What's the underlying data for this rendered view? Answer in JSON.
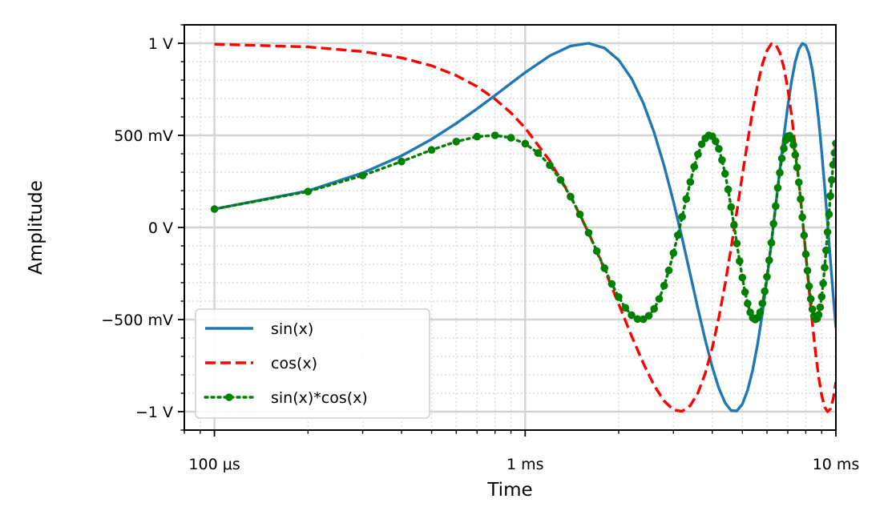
{
  "chart_data": {
    "type": "line",
    "title": "",
    "xlabel": "Time",
    "ylabel": "Amplitude",
    "x_scale": "log",
    "x_unit": "s",
    "xlim": [
      8e-05,
      0.01
    ],
    "ylim": [
      -1.1,
      1.1
    ],
    "grid": true,
    "minor_grid": true,
    "legend_position": "lower-left",
    "x_ticks": [
      {
        "value": 0.0001,
        "label": "100 μs"
      },
      {
        "value": 0.001,
        "label": "1 ms"
      },
      {
        "value": 0.01,
        "label": "10 ms"
      }
    ],
    "y_ticks": [
      {
        "value": 1,
        "label": "1 V"
      },
      {
        "value": 0.5,
        "label": "500 mV"
      },
      {
        "value": 0,
        "label": "0 V"
      },
      {
        "value": -0.5,
        "label": "−500 mV"
      },
      {
        "value": -1,
        "label": "−1 V"
      }
    ],
    "series": [
      {
        "name": "sin(x)",
        "color": "#1f77b4",
        "style": "solid",
        "x": [
          0.0001,
          0.0002,
          0.0003,
          0.0004,
          0.0005,
          0.0006,
          0.0007,
          0.0008,
          0.0009,
          0.001,
          0.0012,
          0.0014,
          0.0016,
          0.0018,
          0.002,
          0.0022,
          0.0024,
          0.0026,
          0.0028,
          0.003,
          0.0032,
          0.0034,
          0.0036,
          0.0038,
          0.004,
          0.0042,
          0.0044,
          0.0046,
          0.0048,
          0.005,
          0.0052,
          0.0054,
          0.0056,
          0.0058,
          0.006,
          0.0062,
          0.0064,
          0.0066,
          0.0068,
          0.007,
          0.0072,
          0.0074,
          0.0076,
          0.0078,
          0.008,
          0.0082,
          0.0084,
          0.0086,
          0.0088,
          0.009,
          0.0092,
          0.0094,
          0.0096,
          0.0098,
          0.01
        ],
        "values": [
          0.1,
          0.199,
          0.296,
          0.389,
          0.479,
          0.565,
          0.644,
          0.717,
          0.783,
          0.841,
          0.932,
          0.985,
          1.0,
          0.974,
          0.909,
          0.808,
          0.675,
          0.516,
          0.335,
          0.141,
          -0.058,
          -0.256,
          -0.443,
          -0.612,
          -0.757,
          -0.872,
          -0.952,
          -0.994,
          -0.996,
          -0.959,
          -0.883,
          -0.773,
          -0.631,
          -0.465,
          -0.279,
          -0.083,
          0.117,
          0.312,
          0.494,
          0.657,
          0.794,
          0.899,
          0.968,
          0.999,
          0.989,
          0.941,
          0.855,
          0.734,
          0.585,
          0.412,
          0.223,
          0.025,
          -0.174,
          -0.366,
          -0.544
        ]
      },
      {
        "name": "cos(x)",
        "color": "#ff0000",
        "style": "dashed",
        "x": [
          0.0001,
          0.0002,
          0.0003,
          0.0004,
          0.0005,
          0.0006,
          0.0007,
          0.0008,
          0.0009,
          0.001,
          0.0012,
          0.0014,
          0.0016,
          0.0018,
          0.002,
          0.0022,
          0.0024,
          0.0026,
          0.0028,
          0.003,
          0.0032,
          0.0034,
          0.0036,
          0.0038,
          0.004,
          0.0042,
          0.0044,
          0.0046,
          0.0048,
          0.005,
          0.0052,
          0.0054,
          0.0056,
          0.0058,
          0.006,
          0.0062,
          0.0064,
          0.0066,
          0.0068,
          0.007,
          0.0072,
          0.0074,
          0.0076,
          0.0078,
          0.008,
          0.0082,
          0.0084,
          0.0086,
          0.0088,
          0.009,
          0.0092,
          0.0094,
          0.0096,
          0.0098,
          0.01
        ],
        "values": [
          0.995,
          0.98,
          0.955,
          0.921,
          0.878,
          0.825,
          0.765,
          0.697,
          0.622,
          0.54,
          0.362,
          0.17,
          -0.029,
          -0.227,
          -0.416,
          -0.589,
          -0.737,
          -0.857,
          -0.942,
          -0.99,
          -0.998,
          -0.967,
          -0.897,
          -0.791,
          -0.654,
          -0.49,
          -0.307,
          -0.112,
          0.087,
          0.284,
          0.468,
          0.635,
          0.776,
          0.886,
          0.96,
          0.997,
          0.993,
          0.95,
          0.869,
          0.754,
          0.608,
          0.438,
          0.251,
          0.054,
          -0.146,
          -0.339,
          -0.519,
          -0.679,
          -0.811,
          -0.911,
          -0.975,
          -1.0,
          -0.985,
          -0.931,
          -0.839
        ]
      },
      {
        "name": "sin(x)*cos(x)",
        "color": "#008000",
        "style": "dotted-markers",
        "x": [
          0.0001,
          0.0002,
          0.0003,
          0.0004,
          0.0005,
          0.0006,
          0.0007,
          0.0008,
          0.0009,
          0.001,
          0.0011,
          0.0012,
          0.0013,
          0.0014,
          0.0015,
          0.0016,
          0.0017,
          0.0018,
          0.0019,
          0.002,
          0.0021,
          0.0022,
          0.0023,
          0.0024,
          0.0025,
          0.0026,
          0.0027,
          0.0028,
          0.0029,
          0.003,
          0.0031,
          0.0032,
          0.0033,
          0.0034,
          0.0035,
          0.0036,
          0.0037,
          0.0038,
          0.0039,
          0.004,
          0.0041,
          0.0042,
          0.0043,
          0.0044,
          0.0045,
          0.0046,
          0.0047,
          0.0048,
          0.0049,
          0.005,
          0.0051,
          0.0052,
          0.0053,
          0.0054,
          0.0055,
          0.0056,
          0.0057,
          0.0058,
          0.0059,
          0.006,
          0.0061,
          0.0062,
          0.0063,
          0.0064,
          0.0065,
          0.0066,
          0.0067,
          0.0068,
          0.0069,
          0.007,
          0.0071,
          0.0072,
          0.0073,
          0.0074,
          0.0075,
          0.0076,
          0.0077,
          0.0078,
          0.0079,
          0.008,
          0.0081,
          0.0082,
          0.0083,
          0.0084,
          0.0085,
          0.0086,
          0.0087,
          0.0088,
          0.0089,
          0.009,
          0.0091,
          0.0092,
          0.0093,
          0.0094,
          0.0095,
          0.0096,
          0.0097,
          0.0098,
          0.0099,
          0.01
        ],
        "values": [
          0.1,
          0.195,
          0.282,
          0.358,
          0.421,
          0.466,
          0.493,
          0.5,
          0.487,
          0.455,
          0.404,
          0.338,
          0.258,
          0.167,
          0.071,
          -0.029,
          -0.128,
          -0.221,
          -0.306,
          -0.378,
          -0.436,
          -0.476,
          -0.497,
          -0.498,
          -0.479,
          -0.442,
          -0.388,
          -0.316,
          -0.233,
          -0.139,
          -0.042,
          0.058,
          0.155,
          0.247,
          0.33,
          0.397,
          0.452,
          0.484,
          0.5,
          0.495,
          0.468,
          0.427,
          0.366,
          0.292,
          0.206,
          0.111,
          0.013,
          -0.087,
          -0.183,
          -0.272,
          -0.351,
          -0.413,
          -0.461,
          -0.491,
          -0.5,
          -0.49,
          -0.461,
          -0.412,
          -0.346,
          -0.268,
          -0.178,
          -0.083,
          0.02,
          0.116,
          0.215,
          0.297,
          0.375,
          0.429,
          0.474,
          0.495,
          0.498,
          0.483,
          0.448,
          0.394,
          0.326,
          0.245,
          0.154,
          0.056,
          -0.043,
          -0.145,
          -0.234,
          -0.319,
          -0.388,
          -0.444,
          -0.481,
          -0.498,
          -0.495,
          -0.474,
          -0.433,
          -0.376,
          -0.304,
          -0.218,
          -0.124,
          -0.025,
          0.072,
          0.171,
          0.258,
          0.341,
          0.405,
          0.456
        ]
      }
    ]
  }
}
